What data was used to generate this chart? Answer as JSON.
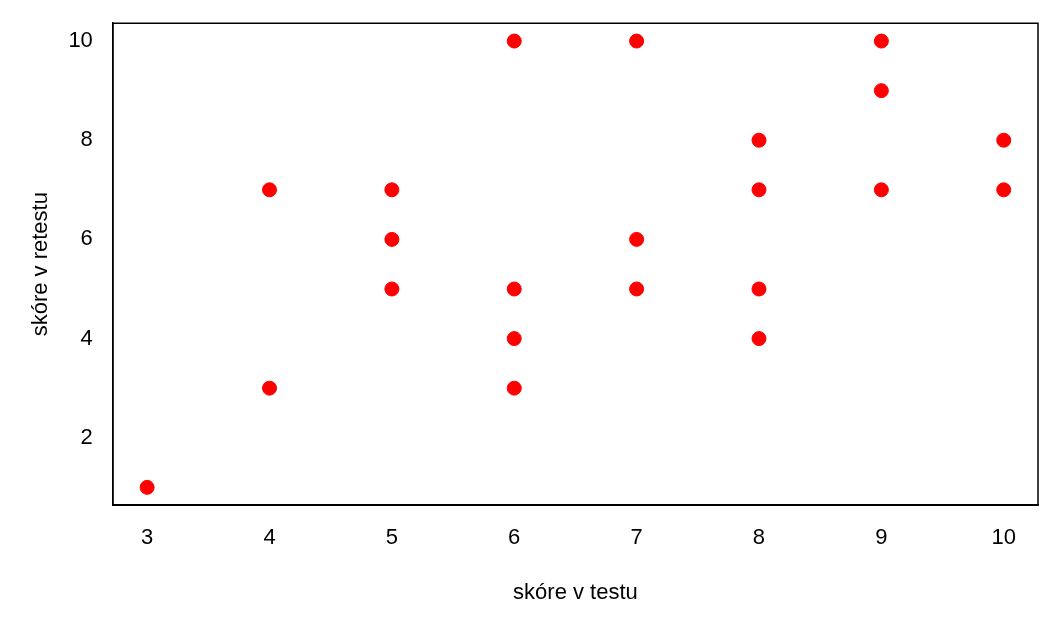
{
  "chart_data": {
    "type": "scatter",
    "xlabel": "skóre v testu",
    "ylabel": "skóre v retestu",
    "x": [
      3,
      4,
      4,
      5,
      5,
      5,
      6,
      6,
      6,
      6,
      7,
      7,
      7,
      8,
      8,
      8,
      8,
      9,
      9,
      9,
      10,
      10
    ],
    "series": [
      {
        "color": "#ff0000",
        "values": [
          1,
          7,
          3,
          7,
          6,
          5,
          10,
          5,
          4,
          3,
          10,
          6,
          5,
          8,
          7,
          5,
          4,
          10,
          9,
          7,
          8,
          7
        ]
      }
    ],
    "xlim": [
      2.72,
      10.28
    ],
    "xticks": [
      3,
      4,
      5,
      6,
      7,
      8,
      9,
      10
    ],
    "ylim": [
      0.64,
      10.36
    ],
    "yticks": [
      2,
      4,
      6,
      8,
      10
    ],
    "grid": false,
    "legend": false,
    "marker": "circle"
  }
}
